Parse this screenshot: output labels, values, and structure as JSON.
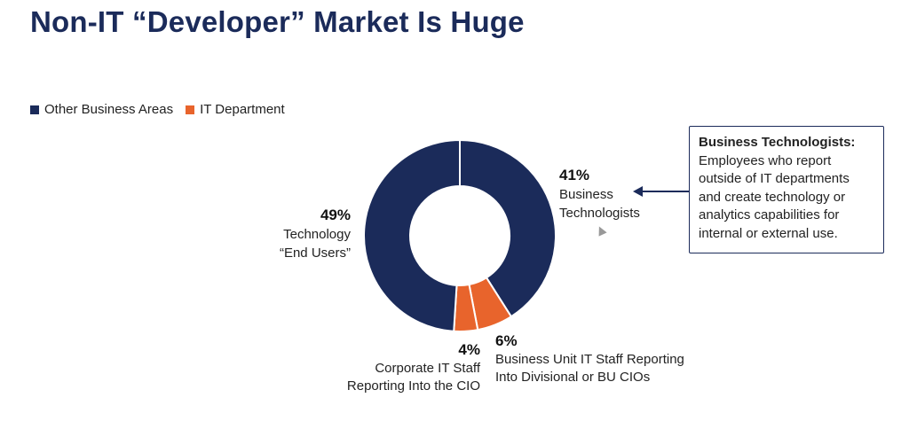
{
  "title": "Non-IT “Developer” Market Is Huge",
  "colors": {
    "navy": "#1b2b5a",
    "orange": "#e8642c",
    "text": "#222222"
  },
  "legend": [
    {
      "label": "Other Business Areas",
      "color": "#1b2b5a"
    },
    {
      "label": "IT Department",
      "color": "#e8642c"
    }
  ],
  "callout": {
    "title": "Business Technologists:",
    "body": "Employees who report outside of IT departments and create technology or analytics capabilities for internal or external use."
  },
  "chart_data": {
    "type": "pie",
    "donut": true,
    "categories": [
      "Business Technologists",
      "Business Unit IT Staff Reporting Into Divisional or BU CIOs",
      "Corporate IT Staff Reporting Into the CIO",
      "Technology “End Users”"
    ],
    "values": [
      41,
      6,
      4,
      49
    ],
    "colors": [
      "#1b2b5a",
      "#e8642c",
      "#e8642c",
      "#1b2b5a"
    ],
    "labels": [
      {
        "pct": "41%",
        "lines": [
          "Business",
          "Technologists"
        ]
      },
      {
        "pct": "6%",
        "lines": [
          "Business Unit IT Staff Reporting",
          "Into Divisional or BU CIOs"
        ]
      },
      {
        "pct": "4%",
        "lines": [
          "Corporate IT Staff",
          "Reporting Into the CIO"
        ]
      },
      {
        "pct": "49%",
        "lines": [
          "Technology",
          "“End Users”"
        ]
      }
    ],
    "legend_placement": "top-left"
  }
}
